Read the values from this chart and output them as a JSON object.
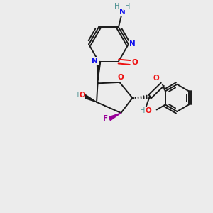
{
  "bg_color": "#ececec",
  "bond_color": "#1a1a1a",
  "N_color": "#1010ee",
  "O_color": "#ee1010",
  "F_color": "#990099",
  "H_color": "#4a9090",
  "figsize": [
    3.0,
    3.0
  ],
  "dpi": 100,
  "xlim": [
    0,
    10
  ],
  "ylim": [
    0,
    10
  ]
}
